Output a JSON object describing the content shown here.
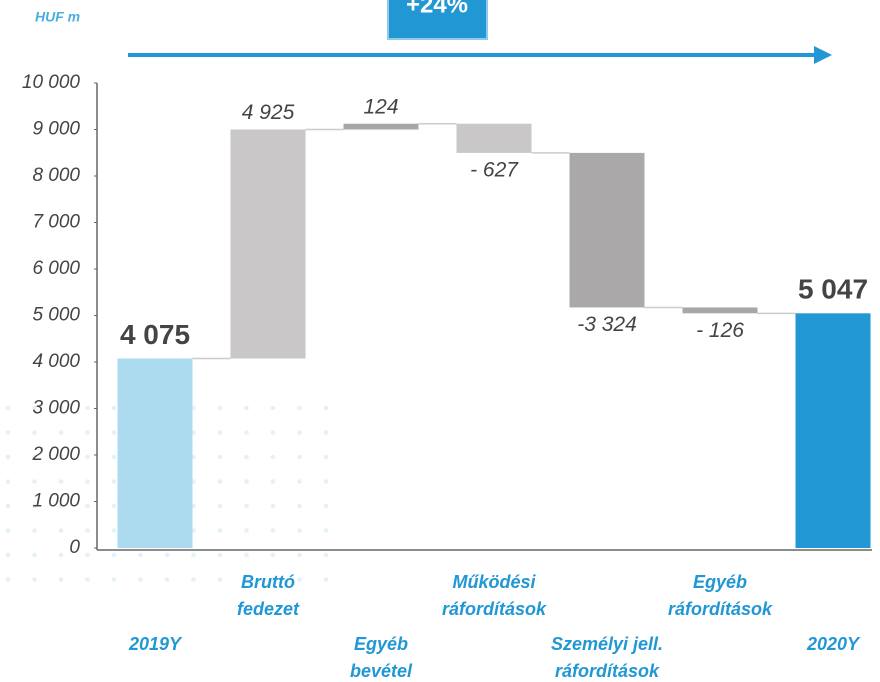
{
  "chart_data": {
    "type": "waterfall",
    "unit_label": "HUF m",
    "annotation": "+24%",
    "categories": [
      [
        "2019Y"
      ],
      [
        "Bruttó",
        "fedezet"
      ],
      [
        "Egyéb",
        "bevétel"
      ],
      [
        "Működési",
        "ráfordítások"
      ],
      [
        "Személyi jell.",
        "ráfordítások"
      ],
      [
        "Egyéb",
        "ráfordítások"
      ],
      [
        "2020Y"
      ]
    ],
    "values": [
      4075,
      4925,
      124,
      -627,
      -3324,
      -126,
      5047
    ],
    "value_labels": [
      "4 075",
      "4 925",
      "124",
      "- 627",
      "-3 324",
      "- 126",
      "5 047"
    ],
    "totals": [
      true,
      false,
      false,
      false,
      false,
      false,
      true
    ],
    "colors": [
      "#acdbf0",
      "#c9c7c8",
      "#a8a6a7",
      "#c9c7c8",
      "#aaa8a9",
      "#a8a6a7",
      "#2197d3"
    ],
    "ylim": [
      0,
      10000
    ],
    "yticks": [
      0,
      {
        "value": 1000,
        "label": "1 000"
      },
      {
        "value": 2000,
        "label": "2 000"
      },
      {
        "value": 3000,
        "label": "3 000"
      },
      {
        "value": 4000,
        "label": "4 000"
      },
      {
        "value": 5000,
        "label": "5 000"
      },
      {
        "value": 6000,
        "label": "6 000"
      },
      {
        "value": 7000,
        "label": "7 000"
      },
      {
        "value": 8000,
        "label": "8 000"
      },
      {
        "value": 9000,
        "label": "9 000"
      },
      {
        "value": 10000,
        "label": "10 000"
      }
    ]
  }
}
